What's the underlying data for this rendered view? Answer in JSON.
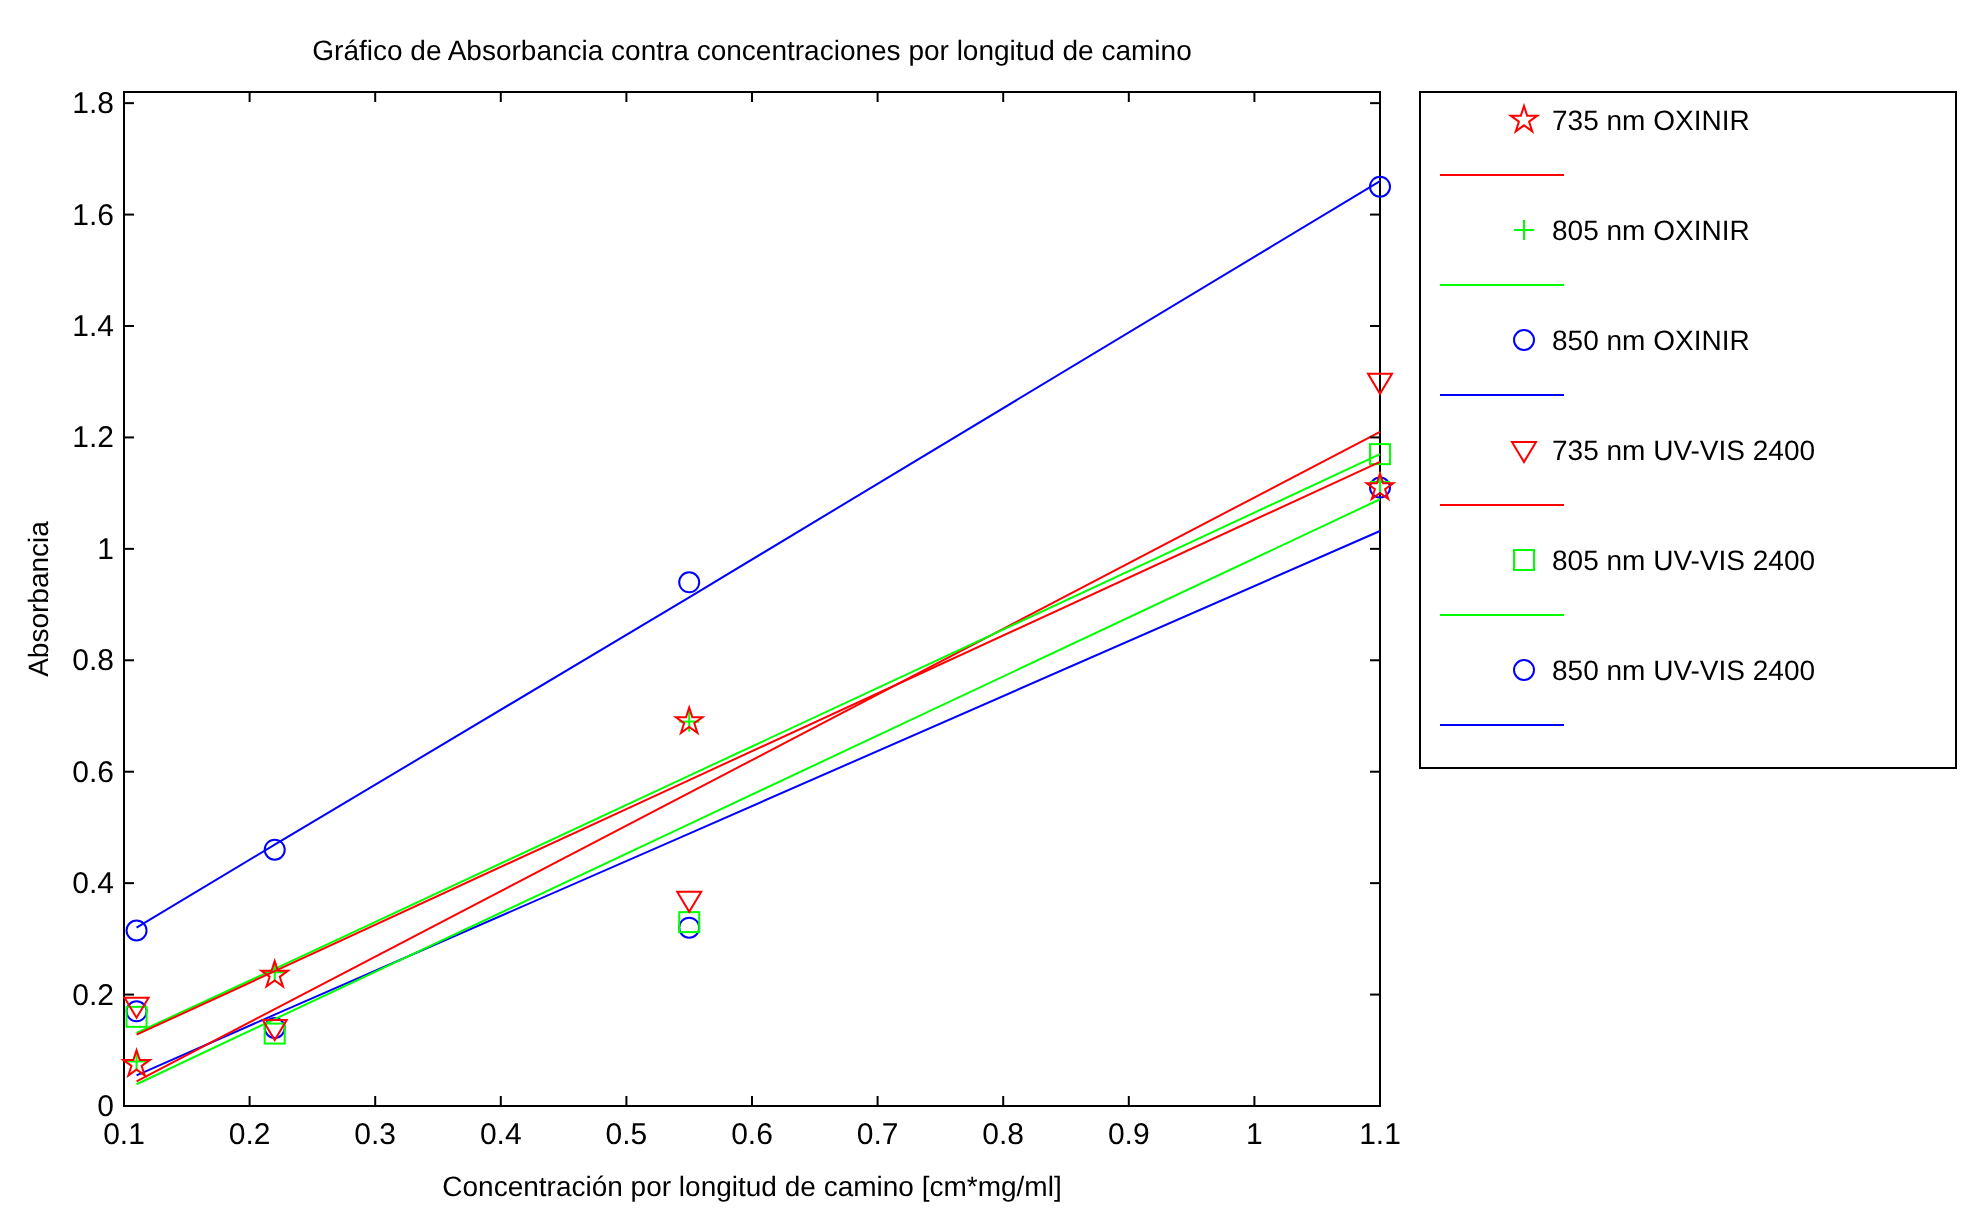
{
  "chart_data": {
    "type": "scatter",
    "title": "Gráfico de Absorbancia contra concentraciones por longitud de camino",
    "xlabel": "Concentración por longitud de camino [cm*mg/ml]",
    "ylabel": "Absorbancia",
    "xlim": [
      0.1,
      1.1
    ],
    "xticks": [
      0.1,
      0.2,
      0.3,
      0.4,
      0.5,
      0.6,
      0.7,
      0.8,
      0.9,
      1,
      1.1
    ],
    "ylim": [
      0,
      1.82
    ],
    "yticks": [
      0,
      0.2,
      0.4,
      0.6,
      0.8,
      1,
      1.2,
      1.4,
      1.6,
      1.8
    ],
    "grid": false,
    "legend": "right",
    "x": [
      0.11,
      0.22,
      0.55,
      1.1
    ],
    "series": [
      {
        "name": "735 nm OXINIR",
        "color": "#ff0000",
        "marker": "star",
        "values": [
          0.075,
          0.235,
          0.69,
          1.11
        ]
      },
      {
        "type": "line",
        "color": "#ff0000",
        "values": [
          0.128,
          0.242,
          0.585,
          1.156
        ]
      },
      {
        "name": "805 nm OXINIR",
        "color": "#00ff00",
        "marker": "cross",
        "values": [
          0.08,
          0.24,
          0.69,
          1.12
        ]
      },
      {
        "type": "line",
        "color": "#00ff00",
        "values": [
          0.131,
          0.246,
          0.593,
          1.17
        ]
      },
      {
        "name": "850 nm OXINIR",
        "color": "#0000ff",
        "marker": "circle",
        "values": [
          0.315,
          0.46,
          0.94,
          1.65
        ]
      },
      {
        "type": "line",
        "color": "#0000ff",
        "values": [
          0.32,
          0.469,
          0.913,
          1.66
        ]
      },
      {
        "name": "735 nm UV-VIS 2400",
        "color": "#ff0000",
        "marker": "triangle",
        "values": [
          0.18,
          0.14,
          0.37,
          1.3
        ]
      },
      {
        "type": "line",
        "color": "#ff0000",
        "values": [
          0.044,
          0.174,
          0.562,
          1.21
        ]
      },
      {
        "name": "805 nm UV-VIS 2400",
        "color": "#00ff00",
        "marker": "square",
        "values": [
          0.16,
          0.13,
          0.33,
          1.17
        ]
      },
      {
        "type": "line",
        "color": "#00ff00",
        "values": [
          0.039,
          0.156,
          0.506,
          1.089
        ]
      },
      {
        "name": "850 nm UV-VIS 2400",
        "color": "#0000ff",
        "marker": "circle",
        "values": [
          0.17,
          0.14,
          0.32,
          1.11
        ]
      },
      {
        "type": "line",
        "color": "#0000ff",
        "values": [
          0.055,
          0.164,
          0.489,
          1.032
        ]
      }
    ]
  }
}
